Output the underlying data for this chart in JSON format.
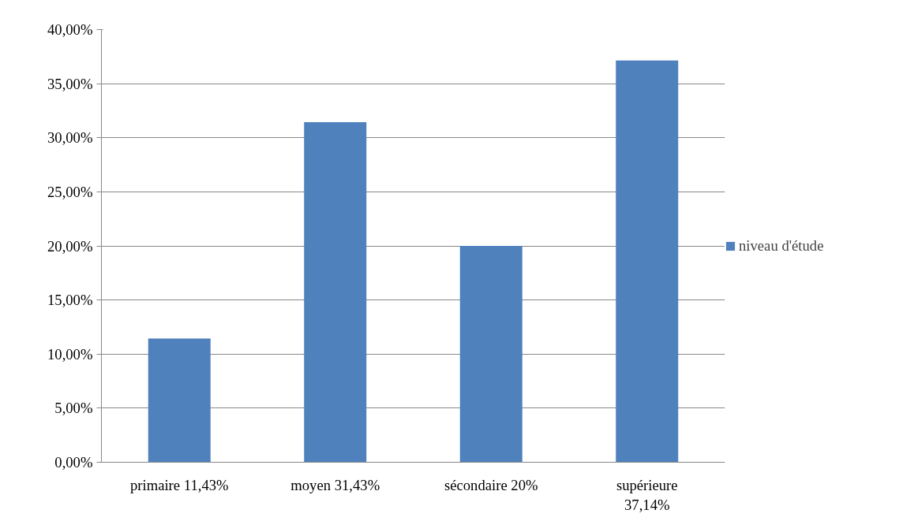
{
  "chart_data": {
    "type": "bar",
    "categories": [
      "primaire 11,43%",
      "moyen 31,43%",
      "sécondaire 20%",
      "supérieure 37,14%"
    ],
    "series": [
      {
        "name": "niveau d'étude",
        "color": "#4f81bd",
        "values": [
          11.43,
          31.43,
          20,
          37.14
        ]
      }
    ],
    "ylim": [
      0,
      40
    ],
    "yticks": [
      {
        "value": 0,
        "label": "0,00%"
      },
      {
        "value": 5,
        "label": "5,00%"
      },
      {
        "value": 10,
        "label": "10,00%"
      },
      {
        "value": 15,
        "label": "15,00%"
      },
      {
        "value": 20,
        "label": "20,00%"
      },
      {
        "value": 25,
        "label": "25,00%"
      },
      {
        "value": 30,
        "label": "30,00%"
      },
      {
        "value": 35,
        "label": "35,00%"
      },
      {
        "value": 40,
        "label": "40,00%"
      }
    ],
    "grid": "y",
    "legend": "right"
  }
}
